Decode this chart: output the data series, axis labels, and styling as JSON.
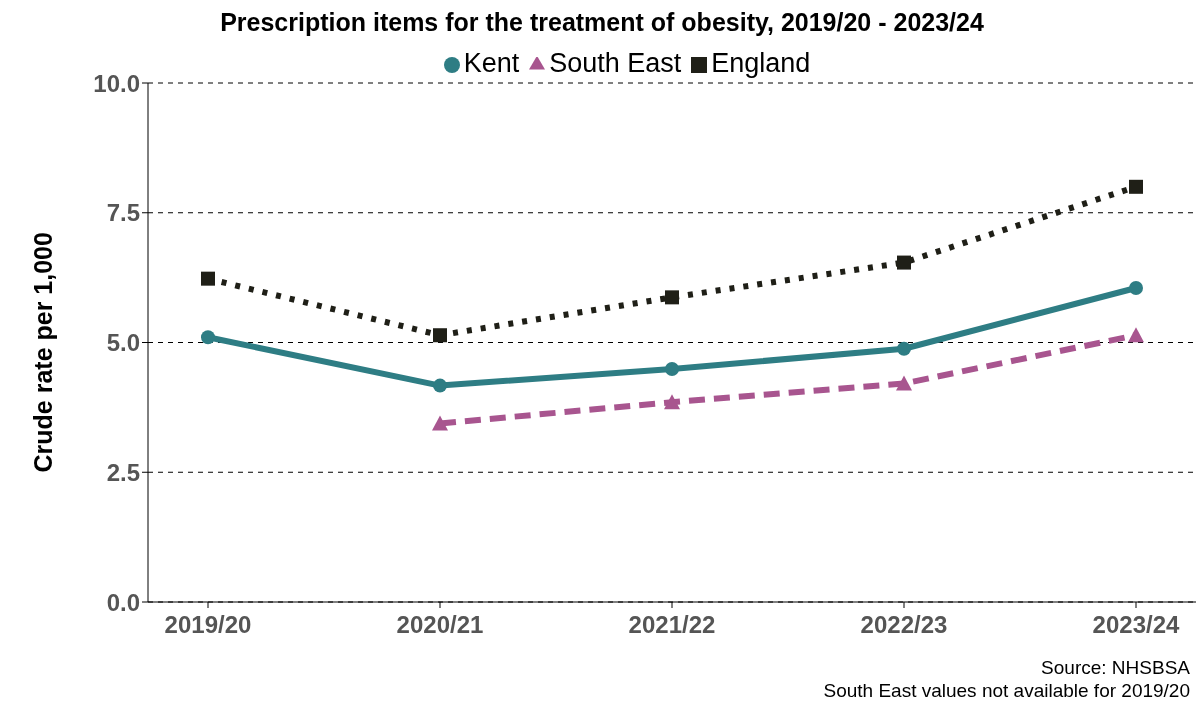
{
  "chart_data": {
    "type": "line",
    "title": "Prescription items for the treatment of obesity, 2019/20 - 2023/24",
    "ylabel": "Crude rate per 1,000",
    "categories": [
      "2019/20",
      "2020/21",
      "2021/22",
      "2022/23",
      "2023/24"
    ],
    "series": [
      {
        "name": "Kent",
        "color": "#2e7d84",
        "values": [
          5.1,
          4.17,
          4.49,
          4.88,
          6.05
        ],
        "marker": "circle",
        "line_style": "solid"
      },
      {
        "name": "South East",
        "color": "#a8558f",
        "values": [
          null,
          3.44,
          3.85,
          4.21,
          5.14
        ],
        "marker": "triangle",
        "line_style": "dashed"
      },
      {
        "name": "England",
        "color": "#1f1f17",
        "values": [
          6.23,
          5.14,
          5.87,
          6.54,
          8.0
        ],
        "marker": "square",
        "line_style": "dotted"
      }
    ],
    "ylim": [
      0,
      10
    ],
    "yticks": [
      {
        "value": 0,
        "label": "0.0"
      },
      {
        "value": 2.5,
        "label": "2.5"
      },
      {
        "value": 5,
        "label": "5.0"
      },
      {
        "value": 7.5,
        "label": "7.5"
      },
      {
        "value": 10,
        "label": "10.0"
      }
    ],
    "grid": "y",
    "legend": "top",
    "annotations": [
      "Source: NHSBSA",
      "South East values not available for 2019/20"
    ]
  }
}
